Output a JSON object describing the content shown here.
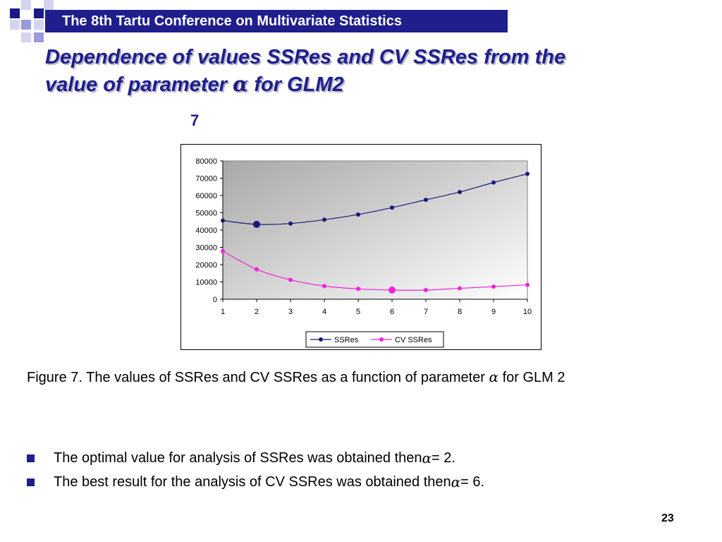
{
  "header": {
    "conference_title": "The 8th Tartu Conference on Multivariate Statistics"
  },
  "slide": {
    "title_line1": "Dependence of values SSRes and CV SSRes from the",
    "title_line2_prefix": "value of parameter ",
    "title_alpha": "α",
    "title_line2_suffix": " for GLM2",
    "figure_number": "7",
    "caption_prefix": "Figure 7. The values of SSRes and CV SSRes as a function of parameter ",
    "caption_alpha": "α",
    "caption_suffix": " for GLM 2",
    "bullets": [
      {
        "prefix": "The optimal value for analysis of SSRes was obtained then ",
        "alpha": "α",
        "suffix": " = 2."
      },
      {
        "prefix": "The best result for the analysis of CV SSRes was obtained then ",
        "alpha": "α",
        "suffix": " = 6."
      }
    ],
    "page_number": "23"
  },
  "colors": {
    "brand": "#1e1e8c",
    "ssres": "#1a1a7a",
    "cv_ssres": "#ee22dd"
  },
  "chart_data": {
    "type": "line",
    "x": [
      1,
      2,
      3,
      4,
      5,
      6,
      7,
      8,
      9,
      10
    ],
    "ylim": [
      0,
      80000
    ],
    "yticks": [
      0,
      10000,
      20000,
      30000,
      40000,
      50000,
      60000,
      70000,
      80000
    ],
    "series": [
      {
        "name": "SSRes",
        "values": [
          45500,
          43300,
          43800,
          46000,
          49000,
          53000,
          57500,
          62000,
          67500,
          72500
        ],
        "highlight_x": 2
      },
      {
        "name": "CV SSRes",
        "values": [
          27800,
          17300,
          11200,
          7600,
          6000,
          5300,
          5300,
          6300,
          7300,
          8300
        ],
        "highlight_x": 6
      }
    ],
    "legend_position": "bottom",
    "grid": false
  }
}
